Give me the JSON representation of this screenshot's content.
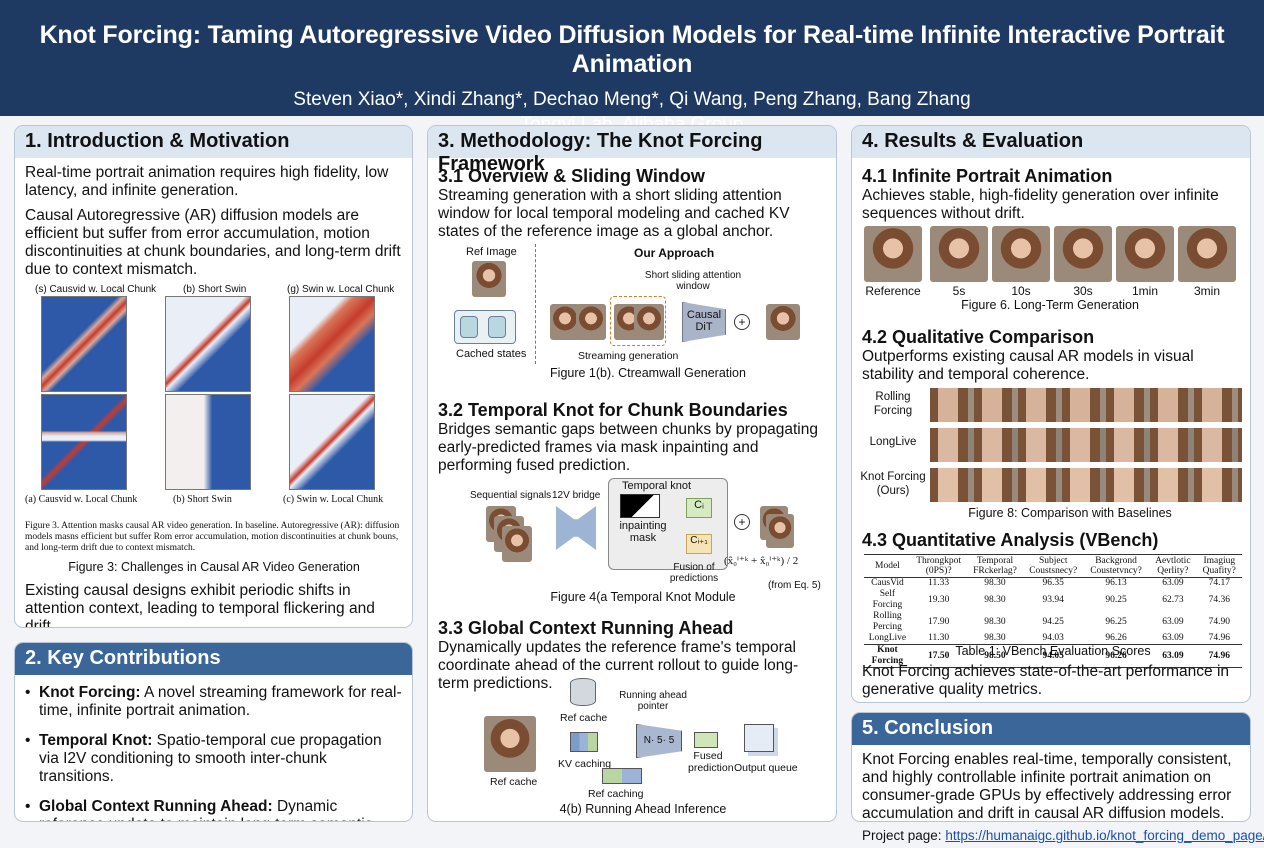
{
  "header": {
    "title": "Knot Forcing: Taming Autoregressive Video Diffusion Models for Real-time Infinite Interactive Portrait Animation",
    "authors": "Steven Xiao*, Xindi Zhang*, Dechao Meng*, Qi Wang, Peng Zhang, Bang Zhang",
    "affiliation": "Tongyi Lab, Alibaba Group"
  },
  "intro": {
    "heading": "1. Introduction & Motivation",
    "p1": "Real-time portrait animation requires high fidelity, low latency, and infinite generation.",
    "p2": "Causal Autoregressive (AR) diffusion models are efficient but suffer from error accumulation, motion discontinuities at chunk boundaries, and long-term drift due to context mismatch.",
    "fig_top_labels": [
      "(s) Causvid w. Local Chunk",
      "(b) Short Swin",
      "(g) Swin w. Local Chunk"
    ],
    "fig_bottom_labels": [
      "(a) Causvid w. Local Chunk",
      "(b) Short Swin",
      "(c) Swin w. Local Chunk"
    ],
    "fig_caption_small": "Figure 3. Attention masks causal AR video generation. In baseline. Autoregressive (AR): diffusion models masns efficient but suffer Rom error accumulation, motion discontinuities at chunk bouns, and long-term drift due to context mismatch.",
    "fig_caption": "Figure 3: Challenges in Causal AR Video Generation",
    "p3": "Existing causal designs exhibit periodic shifts in attention context, leading to temporal flickering and drift."
  },
  "contrib": {
    "heading": "2. Key Contributions",
    "items": [
      {
        "bold": "Knot Forcing:",
        "text": " A novel streaming framework for real-time, infinite portrait animation."
      },
      {
        "bold": "Temporal Knot:",
        "text": " Spatio-temporal cue propagation via I2V conditioning to smooth inter-chunk transitions."
      },
      {
        "bold": "Global Context Running Ahead:",
        "text": " Dynamic reference update to maintain long-term semantic consistency."
      }
    ]
  },
  "method": {
    "heading": "3. Methodology: The Knot Forcing Framework",
    "s1_title": "3.1 Overview & Sliding Window",
    "s1_text": "Streaming generation with a short sliding attention window for local temporal modeling and cached KV states of the reference image as a global anchor.",
    "fig1": {
      "ref_image": "Ref Image",
      "our_approach": "Our Approach",
      "window": "Short sliding attention window",
      "cached": "Cached states",
      "dit": "Causal DiT",
      "streaming": "Streaming generation",
      "caption": "Figure 1(b). Ctreamwall Generation"
    },
    "s2_title": "3.2 Temporal Knot for Chunk Boundaries",
    "s2_text": "Bridges semantic gaps between chunks by propagating early-predicted frames via mask inpainting and performing fused prediction.",
    "fig4": {
      "seq": "Sequential signals",
      "bridge": "12V bridge",
      "knot": "Temporal knot",
      "inpaint": "inpainting mask",
      "ci": "Cᵢ",
      "ci1": "Cᵢ₊₁",
      "fusion": "Fusion of predictions",
      "eq": "(from Eq. 5)",
      "caption": "Figure 4(a Temporal Knot Module"
    },
    "s3_title": "3.3 Global Context Running Ahead",
    "s3_text": "Dynamically updates the reference frame's temporal coordinate ahead of the current rollout to guide long-term predictions.",
    "fig4b": {
      "ref_cache_top": "Ref cache",
      "pointer": "Running ahead pointer",
      "ref_cache_left": "Ref cache",
      "kv": "KV caching",
      "ref_caching": "Ref caching",
      "fused": "Fused prediction",
      "queue": "Output queue",
      "model": "N· 5· 5",
      "caption": "4(b) Running Ahead Inference"
    }
  },
  "results": {
    "heading": "4. Results & Evaluation",
    "s1_title": "4.1 Infinite Portrait Animation",
    "s1_text": "Achieves stable, high-fidelity generation over infinite sequences without drift.",
    "frame_labels": [
      "Reference",
      "5s",
      "10s",
      "30s",
      "1min",
      "3min"
    ],
    "fig6_caption": "Figure 6. Long-Term Generation",
    "s2_title": "4.2 Qualitative Comparison",
    "s2_text": "Outperforms existing causal AR models in visual stability and temporal coherence.",
    "rows": [
      "Rolling Forcing",
      "LongLive",
      "Knot Forcing (Ours)"
    ],
    "fig8_caption": "Figure 8: Comparison with Baselines",
    "s3_title": "4.3 Quantitative Analysis (VBench)",
    "table_headers": [
      "Model",
      "Throngkpot (0PS)?",
      "Temporal FRckerlag?",
      "Subject Coustsnecy?",
      "Backgrond Coustetvncy?",
      "Aevtlotic Qerlity?",
      "Imagiug Quafity?"
    ],
    "table_rows": [
      [
        "CausVid",
        "11.33",
        "98.30",
        "96.35",
        "96.13",
        "63.09",
        "74.17"
      ],
      [
        "Self Forcing",
        "19.30",
        "98.30",
        "93.94",
        "90.25",
        "62.73",
        "74.36"
      ],
      [
        "Rolling Percing",
        "17.90",
        "98.30",
        "94.25",
        "96.25",
        "63.09",
        "74.90"
      ],
      [
        "LongLive",
        "11.30",
        "98.30",
        "94.03",
        "96.26",
        "63.09",
        "74.96"
      ]
    ],
    "table_best": [
      "Knot Forcing",
      "17.50",
      "98.50",
      "94.05",
      "96.26",
      "63.09",
      "74.96"
    ],
    "table_caption": "Table 1: VBench Evaluation Scores",
    "s3_text": "Knot Forcing achieves state-of-the-art performance in generative quality metrics."
  },
  "conclusion": {
    "heading": "5. Conclusion",
    "text": "Knot Forcing enables real-time, temporally consistent, and highly controllable infinite portrait animation on consumer-grade GPUs by effectively addressing error accumulation and drift in causal AR diffusion models."
  },
  "project": {
    "label": "Project page: ",
    "url": "https://humanaigc.github.io/knot_forcing_demo_page/"
  },
  "colors": {
    "header_bg": "#1e3a63",
    "section_head": "#dce6f1",
    "section_head_dark": "#3a6699",
    "link": "#1a4fb3"
  }
}
